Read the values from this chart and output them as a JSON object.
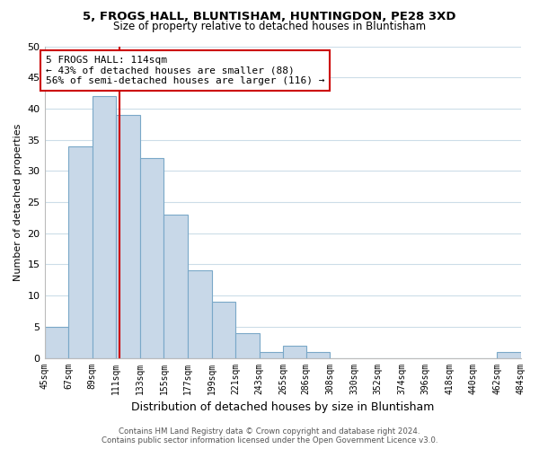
{
  "title": "5, FROGS HALL, BLUNTISHAM, HUNTINGDON, PE28 3XD",
  "subtitle": "Size of property relative to detached houses in Bluntisham",
  "xlabel": "Distribution of detached houses by size in Bluntisham",
  "ylabel": "Number of detached properties",
  "bar_edges": [
    45,
    67,
    89,
    111,
    133,
    155,
    177,
    199,
    221,
    243,
    265,
    286,
    308,
    330,
    352,
    374,
    396,
    418,
    440,
    462,
    484
  ],
  "bar_heights": [
    5,
    34,
    42,
    39,
    32,
    23,
    14,
    9,
    4,
    1,
    2,
    1,
    0,
    0,
    0,
    0,
    0,
    0,
    0,
    1
  ],
  "bar_color": "#c8d8e8",
  "bar_edgecolor": "#7aa8c8",
  "property_line_x": 114,
  "property_line_color": "#cc0000",
  "annotation_line1": "5 FROGS HALL: 114sqm",
  "annotation_line2": "← 43% of detached houses are smaller (88)",
  "annotation_line3": "56% of semi-detached houses are larger (116) →",
  "annotation_box_edgecolor": "#cc0000",
  "annotation_box_facecolor": "#ffffff",
  "ylim": [
    0,
    50
  ],
  "yticks": [
    0,
    5,
    10,
    15,
    20,
    25,
    30,
    35,
    40,
    45,
    50
  ],
  "tick_labels": [
    "45sqm",
    "67sqm",
    "89sqm",
    "111sqm",
    "133sqm",
    "155sqm",
    "177sqm",
    "199sqm",
    "221sqm",
    "243sqm",
    "265sqm",
    "286sqm",
    "308sqm",
    "330sqm",
    "352sqm",
    "374sqm",
    "396sqm",
    "418sqm",
    "440sqm",
    "462sqm",
    "484sqm"
  ],
  "footer_line1": "Contains HM Land Registry data © Crown copyright and database right 2024.",
  "footer_line2": "Contains public sector information licensed under the Open Government Licence v3.0.",
  "background_color": "#ffffff",
  "grid_color": "#ccdde8"
}
